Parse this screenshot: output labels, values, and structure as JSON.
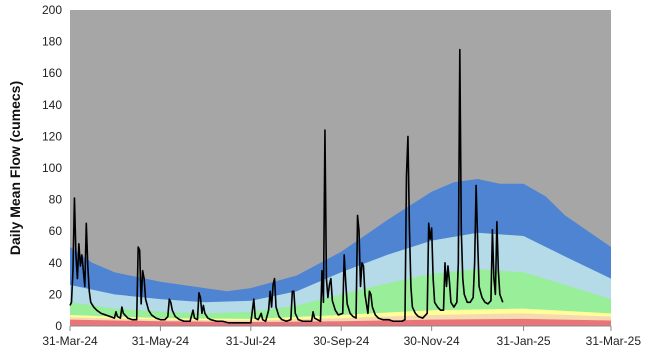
{
  "chart_data": {
    "type": "area",
    "title": "",
    "xlabel": "",
    "ylabel": "Daily Mean Flow (cumecs)",
    "ylim": [
      0,
      200
    ],
    "xlim": [
      "2024-03-31",
      "2025-03-31"
    ],
    "yticks": [
      0,
      20,
      40,
      60,
      80,
      100,
      120,
      140,
      160,
      180,
      200
    ],
    "xticks": [
      "31-Mar-24",
      "31-May-24",
      "31-Jul-24",
      "30-Sep-24",
      "30-Nov-24",
      "31-Jan-25",
      "31-Mar-25"
    ],
    "xtick_dates": [
      "2024-03-31",
      "2024-05-31",
      "2024-07-31",
      "2024-09-30",
      "2024-11-30",
      "2025-01-31",
      "2025-03-31"
    ],
    "grid": false,
    "legend": "none",
    "background_color": "#a6a6a6",
    "bands": [
      {
        "color": "#e9757a",
        "points": [
          [
            "2024-03-31",
            4
          ],
          [
            "2024-05-31",
            3
          ],
          [
            "2024-07-31",
            2.5
          ],
          [
            "2024-09-30",
            3
          ],
          [
            "2024-11-30",
            4
          ],
          [
            "2025-01-31",
            4.5
          ],
          [
            "2025-03-31",
            3.5
          ]
        ]
      },
      {
        "color": "#f6d9b0",
        "points": [
          [
            "2024-03-31",
            5.5
          ],
          [
            "2024-05-31",
            4
          ],
          [
            "2024-07-31",
            3.5
          ],
          [
            "2024-09-30",
            5
          ],
          [
            "2024-11-30",
            7
          ],
          [
            "2025-01-31",
            8
          ],
          [
            "2025-03-31",
            6
          ]
        ]
      },
      {
        "color": "#ffff99",
        "points": [
          [
            "2024-03-31",
            7
          ],
          [
            "2024-05-31",
            5
          ],
          [
            "2024-07-31",
            4.5
          ],
          [
            "2024-09-30",
            7
          ],
          [
            "2024-11-30",
            10
          ],
          [
            "2025-01-31",
            11
          ],
          [
            "2025-03-31",
            8
          ]
        ]
      },
      {
        "color": "#99ee99",
        "points": [
          [
            "2024-03-31",
            15
          ],
          [
            "2024-04-30",
            11
          ],
          [
            "2024-05-31",
            9
          ],
          [
            "2024-06-30",
            8
          ],
          [
            "2024-07-31",
            9
          ],
          [
            "2024-08-31",
            13
          ],
          [
            "2024-09-30",
            20
          ],
          [
            "2024-10-31",
            27
          ],
          [
            "2024-11-30",
            33
          ],
          [
            "2024-12-31",
            36
          ],
          [
            "2025-01-31",
            34
          ],
          [
            "2025-02-28",
            26
          ],
          [
            "2025-03-31",
            17
          ]
        ]
      },
      {
        "color": "#b4dbe7",
        "points": [
          [
            "2024-03-31",
            26
          ],
          [
            "2024-04-30",
            20
          ],
          [
            "2024-05-31",
            17
          ],
          [
            "2024-06-30",
            15
          ],
          [
            "2024-07-31",
            16
          ],
          [
            "2024-08-31",
            22
          ],
          [
            "2024-09-30",
            34
          ],
          [
            "2024-10-31",
            45
          ],
          [
            "2024-11-30",
            54
          ],
          [
            "2024-12-31",
            59
          ],
          [
            "2025-01-31",
            57
          ],
          [
            "2025-02-28",
            44
          ],
          [
            "2025-03-31",
            30
          ]
        ]
      },
      {
        "color": "#4f84d3",
        "points": [
          [
            "2024-03-31",
            50
          ],
          [
            "2024-04-15",
            40
          ],
          [
            "2024-04-30",
            34
          ],
          [
            "2024-05-31",
            28
          ],
          [
            "2024-06-30",
            24
          ],
          [
            "2024-07-15",
            22
          ],
          [
            "2024-07-31",
            24
          ],
          [
            "2024-08-31",
            32
          ],
          [
            "2024-09-30",
            47
          ],
          [
            "2024-10-31",
            67
          ],
          [
            "2024-11-15",
            76
          ],
          [
            "2024-11-30",
            85
          ],
          [
            "2024-12-15",
            91
          ],
          [
            "2024-12-31",
            93
          ],
          [
            "2025-01-15",
            90
          ],
          [
            "2025-01-31",
            90
          ],
          [
            "2025-02-15",
            82
          ],
          [
            "2025-02-28",
            70
          ],
          [
            "2025-03-31",
            50
          ]
        ]
      }
    ],
    "series": [
      {
        "type": "line",
        "color": "#000000",
        "points": [
          [
            "2024-03-31",
            13
          ],
          [
            "2024-04-01",
            15
          ],
          [
            "2024-04-02",
            35
          ],
          [
            "2024-04-03",
            81
          ],
          [
            "2024-04-04",
            45
          ],
          [
            "2024-04-05",
            30
          ],
          [
            "2024-04-06",
            52
          ],
          [
            "2024-04-07",
            38
          ],
          [
            "2024-04-08",
            45
          ],
          [
            "2024-04-09",
            35
          ],
          [
            "2024-04-10",
            25
          ],
          [
            "2024-04-11",
            65
          ],
          [
            "2024-04-12",
            38
          ],
          [
            "2024-04-13",
            22
          ],
          [
            "2024-04-14",
            15
          ],
          [
            "2024-04-16",
            12
          ],
          [
            "2024-04-18",
            10
          ],
          [
            "2024-04-21",
            8
          ],
          [
            "2024-04-24",
            7
          ],
          [
            "2024-04-27",
            6
          ],
          [
            "2024-04-30",
            5
          ],
          [
            "2024-05-01",
            9
          ],
          [
            "2024-05-02",
            6
          ],
          [
            "2024-05-04",
            5
          ],
          [
            "2024-05-05",
            12
          ],
          [
            "2024-05-06",
            8
          ],
          [
            "2024-05-09",
            5
          ],
          [
            "2024-05-12",
            4
          ],
          [
            "2024-05-15",
            4
          ],
          [
            "2024-05-16",
            50
          ],
          [
            "2024-05-17",
            48
          ],
          [
            "2024-05-18",
            14
          ],
          [
            "2024-05-19",
            35
          ],
          [
            "2024-05-20",
            30
          ],
          [
            "2024-05-21",
            17
          ],
          [
            "2024-05-23",
            10
          ],
          [
            "2024-05-25",
            7
          ],
          [
            "2024-05-28",
            5
          ],
          [
            "2024-05-31",
            4
          ],
          [
            "2024-06-03",
            4
          ],
          [
            "2024-06-05",
            6
          ],
          [
            "2024-06-06",
            17
          ],
          [
            "2024-06-07",
            15
          ],
          [
            "2024-06-08",
            10
          ],
          [
            "2024-06-10",
            6
          ],
          [
            "2024-06-13",
            4
          ],
          [
            "2024-06-16",
            3
          ],
          [
            "2024-06-20",
            3
          ],
          [
            "2024-06-22",
            10
          ],
          [
            "2024-06-23",
            5
          ],
          [
            "2024-06-25",
            4
          ],
          [
            "2024-06-26",
            21
          ],
          [
            "2024-06-27",
            18
          ],
          [
            "2024-06-28",
            8
          ],
          [
            "2024-06-29",
            13
          ],
          [
            "2024-06-30",
            8
          ],
          [
            "2024-07-02",
            5
          ],
          [
            "2024-07-04",
            4
          ],
          [
            "2024-07-08",
            3
          ],
          [
            "2024-07-12",
            3
          ],
          [
            "2024-07-16",
            2
          ],
          [
            "2024-07-20",
            2
          ],
          [
            "2024-07-24",
            2
          ],
          [
            "2024-07-28",
            2
          ],
          [
            "2024-07-31",
            2
          ],
          [
            "2024-08-02",
            17
          ],
          [
            "2024-08-03",
            5
          ],
          [
            "2024-08-05",
            4
          ],
          [
            "2024-08-07",
            8
          ],
          [
            "2024-08-08",
            4
          ],
          [
            "2024-08-10",
            3
          ],
          [
            "2024-08-12",
            10
          ],
          [
            "2024-08-13",
            22
          ],
          [
            "2024-08-14",
            12
          ],
          [
            "2024-08-15",
            26
          ],
          [
            "2024-08-16",
            30
          ],
          [
            "2024-08-17",
            12
          ],
          [
            "2024-08-19",
            6
          ],
          [
            "2024-08-21",
            4
          ],
          [
            "2024-08-24",
            3
          ],
          [
            "2024-08-27",
            4
          ],
          [
            "2024-08-28",
            22
          ],
          [
            "2024-08-29",
            22
          ],
          [
            "2024-08-30",
            8
          ],
          [
            "2024-09-01",
            4
          ],
          [
            "2024-09-04",
            3
          ],
          [
            "2024-09-07",
            3
          ],
          [
            "2024-09-10",
            3
          ],
          [
            "2024-09-11",
            9
          ],
          [
            "2024-09-12",
            5
          ],
          [
            "2024-09-14",
            4
          ],
          [
            "2024-09-16",
            3
          ],
          [
            "2024-09-17",
            35
          ],
          [
            "2024-09-18",
            15
          ],
          [
            "2024-09-19",
            124
          ],
          [
            "2024-09-20",
            30
          ],
          [
            "2024-09-21",
            18
          ],
          [
            "2024-09-22",
            26
          ],
          [
            "2024-09-23",
            30
          ],
          [
            "2024-09-24",
            16
          ],
          [
            "2024-09-26",
            10
          ],
          [
            "2024-09-28",
            7
          ],
          [
            "2024-10-01",
            8
          ],
          [
            "2024-10-02",
            45
          ],
          [
            "2024-10-03",
            28
          ],
          [
            "2024-10-04",
            14
          ],
          [
            "2024-10-06",
            8
          ],
          [
            "2024-10-08",
            6
          ],
          [
            "2024-10-10",
            5
          ],
          [
            "2024-10-11",
            70
          ],
          [
            "2024-10-12",
            60
          ],
          [
            "2024-10-13",
            25
          ],
          [
            "2024-10-14",
            40
          ],
          [
            "2024-10-15",
            38
          ],
          [
            "2024-10-16",
            20
          ],
          [
            "2024-10-18",
            8
          ],
          [
            "2024-10-19",
            22
          ],
          [
            "2024-10-20",
            20
          ],
          [
            "2024-10-21",
            12
          ],
          [
            "2024-10-23",
            7
          ],
          [
            "2024-10-25",
            5
          ],
          [
            "2024-10-28",
            4
          ],
          [
            "2024-11-01",
            4
          ],
          [
            "2024-11-04",
            3
          ],
          [
            "2024-11-07",
            3
          ],
          [
            "2024-11-10",
            3
          ],
          [
            "2024-11-12",
            4
          ],
          [
            "2024-11-13",
            95
          ],
          [
            "2024-11-14",
            120
          ],
          [
            "2024-11-15",
            62
          ],
          [
            "2024-11-16",
            25
          ],
          [
            "2024-11-17",
            12
          ],
          [
            "2024-11-19",
            8
          ],
          [
            "2024-11-21",
            6
          ],
          [
            "2024-11-24",
            5
          ],
          [
            "2024-11-27",
            8
          ],
          [
            "2024-11-28",
            65
          ],
          [
            "2024-11-29",
            55
          ],
          [
            "2024-11-30",
            62
          ],
          [
            "2024-12-01",
            30
          ],
          [
            "2024-12-02",
            15
          ],
          [
            "2024-12-04",
            12
          ],
          [
            "2024-12-06",
            10
          ],
          [
            "2024-12-08",
            10
          ],
          [
            "2024-12-09",
            40
          ],
          [
            "2024-12-10",
            25
          ],
          [
            "2024-12-11",
            38
          ],
          [
            "2024-12-12",
            28
          ],
          [
            "2024-12-13",
            15
          ],
          [
            "2024-12-15",
            12
          ],
          [
            "2024-12-17",
            15
          ],
          [
            "2024-12-18",
            40
          ],
          [
            "2024-12-19",
            175
          ],
          [
            "2024-12-20",
            60
          ],
          [
            "2024-12-21",
            30
          ],
          [
            "2024-12-22",
            20
          ],
          [
            "2024-12-24",
            15
          ],
          [
            "2024-12-26",
            15
          ],
          [
            "2024-12-28",
            18
          ],
          [
            "2024-12-29",
            40
          ],
          [
            "2024-12-30",
            89
          ],
          [
            "2024-12-31",
            55
          ],
          [
            "2025-01-01",
            25
          ],
          [
            "2025-01-03",
            18
          ],
          [
            "2025-01-05",
            15
          ],
          [
            "2025-01-07",
            14
          ],
          [
            "2025-01-09",
            16
          ],
          [
            "2025-01-10",
            61
          ],
          [
            "2025-01-11",
            30
          ],
          [
            "2025-01-12",
            20
          ],
          [
            "2025-01-13",
            66
          ],
          [
            "2025-01-14",
            35
          ],
          [
            "2025-01-15",
            20
          ],
          [
            "2025-01-17",
            15
          ]
        ]
      }
    ]
  }
}
